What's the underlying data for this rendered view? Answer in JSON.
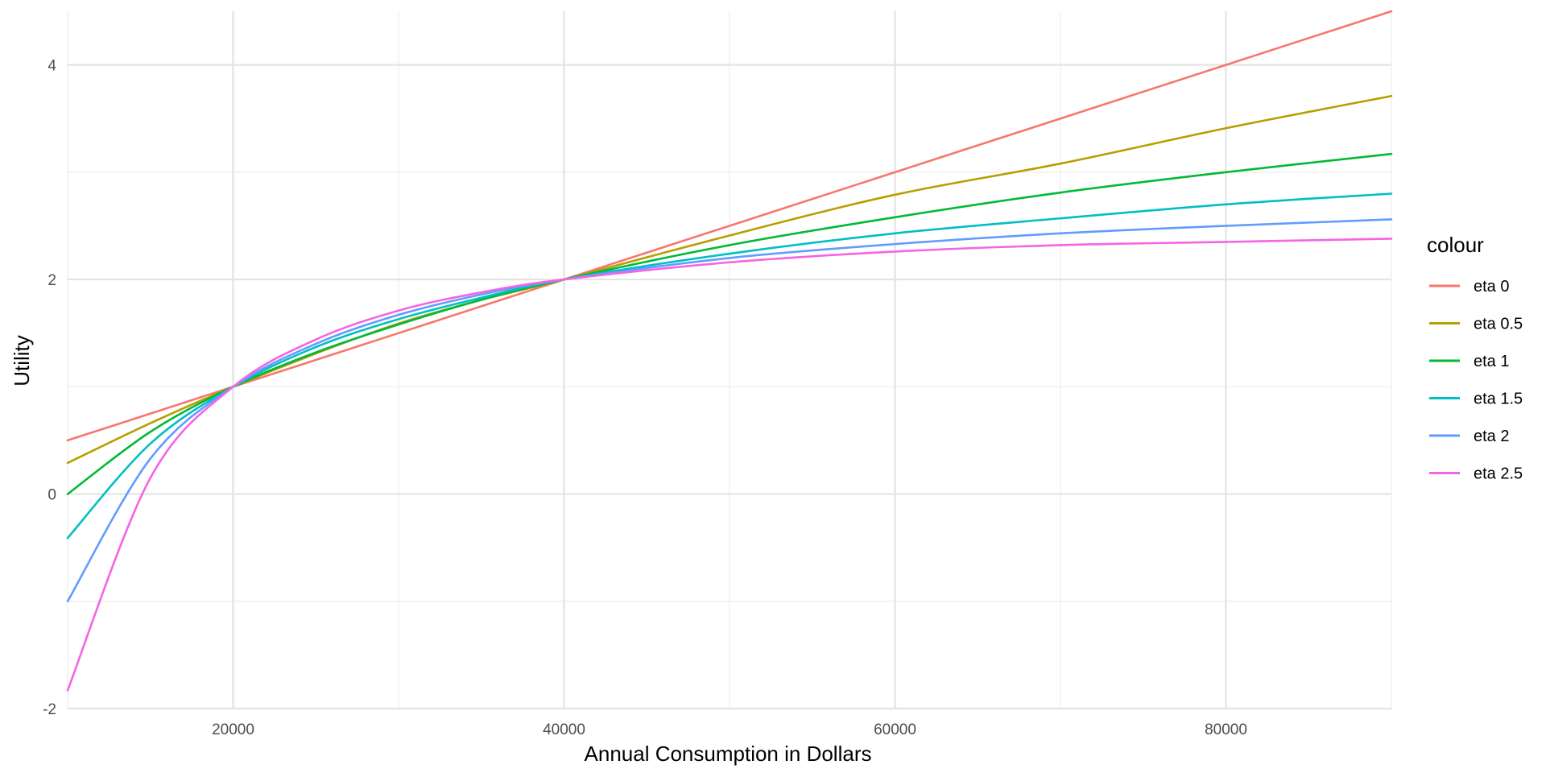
{
  "chart_data": {
    "type": "line",
    "xlabel": "Annual Consumption in Dollars",
    "ylabel": "Utility",
    "xlim": [
      10000,
      90000
    ],
    "ylim": [
      -2,
      4.5
    ],
    "x_ticks": [
      20000,
      40000,
      60000,
      80000
    ],
    "x_tick_labels": [
      "20000",
      "40000",
      "60000",
      "80000"
    ],
    "y_ticks": [
      -2,
      0,
      2,
      4
    ],
    "y_tick_labels": [
      "-2",
      "0",
      "2",
      "4"
    ],
    "grid": true,
    "legend": {
      "title": "colour",
      "position": "right"
    },
    "x": [
      10000,
      15000,
      20000,
      25000,
      30000,
      35000,
      40000,
      50000,
      60000,
      70000,
      80000,
      90000
    ],
    "series": [
      {
        "name": "eta 0",
        "color": "#F8766D",
        "values": [
          0.5,
          0.75,
          1.0,
          1.25,
          1.5,
          1.75,
          2.0,
          2.5,
          3.0,
          3.5,
          4.0,
          4.5
        ]
      },
      {
        "name": "eta 0.5",
        "color": "#B79F00",
        "values": [
          0.29,
          0.66,
          1.0,
          1.31,
          1.59,
          1.81,
          2.0,
          2.41,
          2.79,
          3.08,
          3.41,
          3.71
        ]
      },
      {
        "name": "eta 1",
        "color": "#00BA38",
        "values": [
          0.0,
          0.58,
          1.0,
          1.32,
          1.58,
          1.81,
          2.0,
          2.32,
          2.58,
          2.81,
          3.0,
          3.17
        ]
      },
      {
        "name": "eta 1.5",
        "color": "#00BFC4",
        "values": [
          -0.41,
          0.47,
          1.0,
          1.37,
          1.63,
          1.83,
          2.0,
          2.24,
          2.43,
          2.57,
          2.7,
          2.8
        ]
      },
      {
        "name": "eta 2",
        "color": "#619CFF",
        "values": [
          -1.0,
          0.33,
          1.0,
          1.4,
          1.67,
          1.86,
          2.0,
          2.2,
          2.33,
          2.43,
          2.5,
          2.56
        ]
      },
      {
        "name": "eta 2.5",
        "color": "#F564E3",
        "values": [
          -1.83,
          0.15,
          1.0,
          1.44,
          1.71,
          1.88,
          2.0,
          2.16,
          2.26,
          2.32,
          2.35,
          2.38
        ]
      }
    ]
  }
}
